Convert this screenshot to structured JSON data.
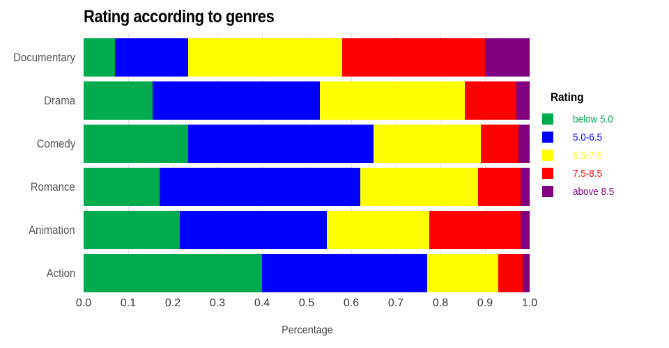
{
  "title": "Rating according to genres",
  "axes": {
    "xlabel": "Percentage",
    "x_tick_labels": [
      "0.0",
      "0.1",
      "0.2",
      "0.3",
      "0.4",
      "0.5",
      "0.6",
      "0.7",
      "0.8",
      "0.9",
      "1.0"
    ]
  },
  "legend": {
    "title": "Rating",
    "items": [
      {
        "label": "below 5.0",
        "color": "#00ab4e"
      },
      {
        "label": "5.0-6.5",
        "color": "#0000fe"
      },
      {
        "label": "6.5-7.5",
        "color": "#ffff00"
      },
      {
        "label": "7.5-8.5",
        "color": "#fe0000"
      },
      {
        "label": "above 8.5",
        "color": "#800080"
      }
    ]
  },
  "colors": {
    "gridline": "#eedce3",
    "axis_text": "#333333",
    "category_text": "#545454"
  },
  "chart_data": {
    "type": "bar",
    "stacked": true,
    "orientation": "horizontal",
    "title": "Rating according to genres",
    "xlabel": "Percentage",
    "ylabel": "",
    "xlim": [
      0,
      1
    ],
    "x_tick_labels": [
      "0.0",
      "0.1",
      "0.2",
      "0.3",
      "0.4",
      "0.5",
      "0.6",
      "0.7",
      "0.8",
      "0.9",
      "1.0"
    ],
    "grid": "vertical",
    "legend_position": "right",
    "categories": [
      "Documentary",
      "Drama",
      "Comedy",
      "Romance",
      "Animation",
      "Action"
    ],
    "series": [
      {
        "name": "below 5.0",
        "color": "#00ab4e",
        "values": [
          0.07,
          0.155,
          0.235,
          0.17,
          0.215,
          0.4
        ]
      },
      {
        "name": "5.0-6.5",
        "color": "#0000fe",
        "values": [
          0.165,
          0.375,
          0.415,
          0.45,
          0.33,
          0.37
        ]
      },
      {
        "name": "6.5-7.5",
        "color": "#ffff00",
        "values": [
          0.345,
          0.325,
          0.24,
          0.265,
          0.23,
          0.16
        ]
      },
      {
        "name": "7.5-8.5",
        "color": "#fe0000",
        "values": [
          0.32,
          0.115,
          0.085,
          0.095,
          0.205,
          0.055
        ]
      },
      {
        "name": "above 8.5",
        "color": "#800080",
        "values": [
          0.1,
          0.03,
          0.025,
          0.02,
          0.02,
          0.015
        ]
      }
    ]
  }
}
